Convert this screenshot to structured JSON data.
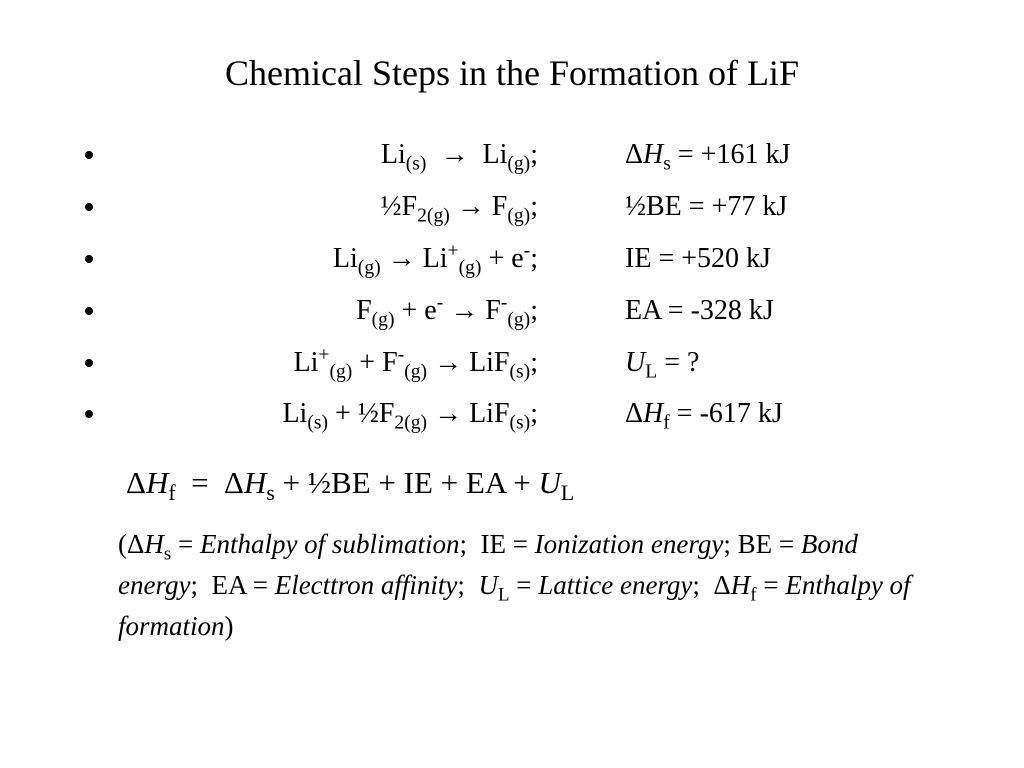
{
  "title": "Chemical Steps in the Formation of LiF",
  "steps": [
    {
      "reactant_html": "Li<sub>(s)</sub>&nbsp;&nbsp;<span class='arrow'>→</span>&nbsp;&nbsp;Li<sub>(g)</sub>;",
      "value_html": "Δ<span class='italic'>H</span><sub>s</sub> = +161 kJ"
    },
    {
      "reactant_html": "½F<sub>2(g)</sub> <span class='arrow'>→</span> F<sub>(g)</sub>;",
      "value_html": "½BE = +77 kJ"
    },
    {
      "reactant_html": "Li<sub>(g)</sub> <span class='arrow'>→</span> Li<sup>+</sup><sub>(g)</sub> + e<sup>-</sup>;",
      "value_html": "IE = +520 kJ"
    },
    {
      "reactant_html": "F<sub>(g)</sub> + e<sup>-</sup> <span class='arrow'>→</span> F<sup>-</sup><sub>(g)</sub>;",
      "value_html": "EA = -328 kJ"
    },
    {
      "reactant_html": "Li<sup>+</sup><sub>(g)</sub> + F<sup>-</sup><sub>(g)</sub> <span class='arrow'>→</span> LiF<sub>(s)</sub>;",
      "value_html": "<span class='italic'>U</span><sub>L</sub> = ?"
    },
    {
      "reactant_html": "Li<sub>(s)</sub> + ½F<sub>2(g)</sub> <span class='arrow'>→</span> LiF<sub>(s)</sub>;",
      "value_html": "Δ<span class='italic'>H</span><sub>f</sub> = -617 kJ"
    }
  ],
  "equation_html": "Δ<span class='italic'>H</span><sub>f</sub> &nbsp;=&nbsp; Δ<span class='italic'>H</span><sub>s</sub> + ½BE + IE + EA + <span class='italic'>U</span><sub>L</sub>",
  "legend_html": "(Δ<span class='italic'>H</span><sub>s</sub> = <span class='italic'>Enthalpy of sublimation</span>;&nbsp; IE = <span class='italic'>Ionization energy</span>; BE = <span class='italic'>Bond energy</span>;&nbsp; EA = <span class='italic'>Electtron affinity</span>;&nbsp; <span class='italic'>U</span><sub>L</sub> = <span class='italic'>Lattice energy</span>;&nbsp; Δ<span class='italic'>H</span><sub>f</sub> = <span class='italic'>Enthalpy of formation</span>)",
  "background_color": "#ffffff",
  "text_color": "#000000"
}
